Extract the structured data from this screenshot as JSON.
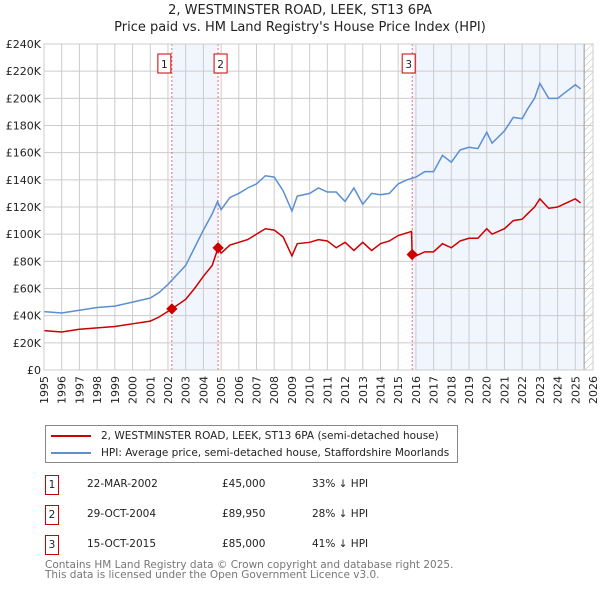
{
  "chart_data": {
    "type": "line",
    "title": "2, WESTMINSTER ROAD, LEEK, ST13 6PA",
    "subtitle": "Price paid vs. HM Land Registry's House Price Index (HPI)",
    "xlim": [
      1995,
      2026
    ],
    "ylim": [
      0,
      240000
    ],
    "x_ticks": [
      "1995",
      "1996",
      "1997",
      "1998",
      "1999",
      "2000",
      "2001",
      "2002",
      "2003",
      "2004",
      "2005",
      "2006",
      "2007",
      "2008",
      "2009",
      "2010",
      "2011",
      "2012",
      "2013",
      "2014",
      "2015",
      "2016",
      "2017",
      "2018",
      "2019",
      "2020",
      "2021",
      "2022",
      "2023",
      "2024",
      "2025",
      "2026"
    ],
    "y_ticks": [
      "£0",
      "£20K",
      "£40K",
      "£60K",
      "£80K",
      "£100K",
      "£120K",
      "£140K",
      "£160K",
      "£180K",
      "£200K",
      "£220K",
      "£240K"
    ],
    "grid": true,
    "series": [
      {
        "name": "2, WESTMINSTER ROAD, LEEK, ST13 6PA (semi-detached house)",
        "color": "#cc0000",
        "x": [
          1995,
          1996,
          1997,
          1998,
          1999,
          2000,
          2001,
          2001.5,
          2002.22,
          2003,
          2003.5,
          2004,
          2004.5,
          2004.83,
          2005,
          2005.5,
          2006,
          2006.5,
          2007,
          2007.5,
          2008,
          2008.5,
          2009,
          2009.3,
          2010,
          2010.5,
          2011,
          2011.5,
          2012,
          2012.5,
          2013,
          2013.5,
          2014,
          2014.5,
          2015,
          2015.75,
          2015.79,
          2016,
          2016.5,
          2017,
          2017.5,
          2018,
          2018.5,
          2019,
          2019.5,
          2020,
          2020.3,
          2021,
          2021.5,
          2022,
          2022.3,
          2022.7,
          2023,
          2023.5,
          2024,
          2024.5,
          2025,
          2025.3
        ],
        "y": [
          29000,
          28000,
          30000,
          31000,
          32000,
          34000,
          36000,
          39000,
          45000,
          52000,
          60000,
          69000,
          77000,
          89950,
          86000,
          92000,
          94000,
          96000,
          100000,
          104000,
          103000,
          98000,
          84000,
          93000,
          94000,
          96000,
          95000,
          90000,
          94000,
          88000,
          94000,
          88000,
          93000,
          95000,
          99000,
          102000,
          85000,
          84000,
          87000,
          87000,
          93000,
          90000,
          95000,
          97000,
          97000,
          104000,
          100000,
          104000,
          110000,
          111000,
          115000,
          120000,
          126000,
          119000,
          120000,
          123000,
          126000,
          123000
        ]
      },
      {
        "name": "HPI: Average price, semi-detached house, Staffordshire Moorlands",
        "color": "#5b8fd4",
        "x": [
          1995,
          1996,
          1997,
          1998,
          1999,
          2000,
          2001,
          2001.5,
          2002,
          2002.5,
          2003,
          2003.5,
          2004,
          2004.5,
          2004.8,
          2005,
          2005.5,
          2006,
          2006.5,
          2007,
          2007.5,
          2008,
          2008.5,
          2009,
          2009.3,
          2010,
          2010.5,
          2011,
          2011.5,
          2012,
          2012.5,
          2013,
          2013.5,
          2014,
          2014.5,
          2015,
          2015.5,
          2016,
          2016.5,
          2017,
          2017.5,
          2018,
          2018.5,
          2019,
          2019.5,
          2020,
          2020.3,
          2021,
          2021.5,
          2022,
          2022.3,
          2022.7,
          2023,
          2023.5,
          2024,
          2024.5,
          2025,
          2025.3
        ],
        "y": [
          43000,
          42000,
          44000,
          46000,
          47000,
          50000,
          53000,
          57000,
          63000,
          70000,
          77000,
          90000,
          103000,
          115000,
          124000,
          118000,
          127000,
          130000,
          134000,
          137000,
          143000,
          142000,
          132000,
          117000,
          128000,
          130000,
          134000,
          131000,
          131000,
          124000,
          134000,
          122000,
          130000,
          129000,
          130000,
          137000,
          140000,
          142000,
          146000,
          146000,
          158000,
          153000,
          162000,
          164000,
          163000,
          175000,
          167000,
          176000,
          186000,
          185000,
          192000,
          200000,
          211000,
          200000,
          200000,
          205000,
          210000,
          207000
        ]
      }
    ],
    "sales": [
      {
        "label": "1",
        "x": 2002.22,
        "y": 45000
      },
      {
        "label": "2",
        "x": 2004.83,
        "y": 89950
      },
      {
        "label": "3",
        "x": 2015.79,
        "y": 85000
      }
    ],
    "shaded": [
      [
        2002.22,
        2004.83
      ],
      [
        2015.79,
        2025.5
      ]
    ],
    "hatched_from": 2025.5
  },
  "legend": {
    "property": "2, WESTMINSTER ROAD, LEEK, ST13 6PA (semi-detached house)",
    "hpi": "HPI: Average price, semi-detached house, Staffordshire Moorlands"
  },
  "transactions": [
    {
      "num": "1",
      "date": "22-MAR-2002",
      "price": "£45,000",
      "hpi": "33% ↓ HPI"
    },
    {
      "num": "2",
      "date": "29-OCT-2004",
      "price": "£89,950",
      "hpi": "28% ↓ HPI"
    },
    {
      "num": "3",
      "date": "15-OCT-2015",
      "price": "£85,000",
      "hpi": "41% ↓ HPI"
    }
  ],
  "footer": {
    "line1": "Contains HM Land Registry data © Crown copyright and database right 2025.",
    "line2": "This data is licensed under the Open Government Licence v3.0."
  }
}
